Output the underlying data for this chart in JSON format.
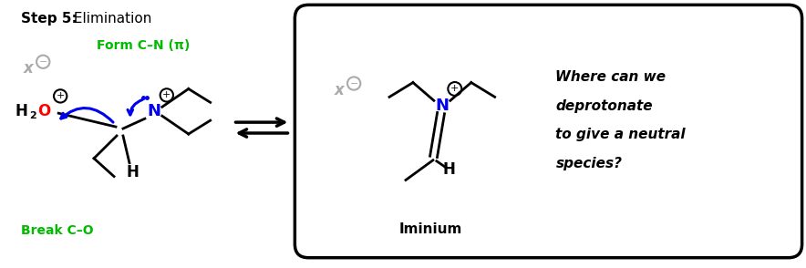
{
  "title_bold": "Step 5:",
  "title_regular": " Elimination",
  "green_label_top": "Form C–N (π)",
  "green_label_bottom": "Break C–O",
  "box_text_line1": "Where can we",
  "box_text_line2": "deprotonate",
  "box_text_line3": "to give a neutral",
  "box_text_line4": "species?",
  "iminium_label": "Iminium",
  "bg_color": "#ffffff",
  "green_color": "#00bb00",
  "gray_color": "#aaaaaa",
  "blue_color": "#0000ee",
  "red_color": "#ff0000"
}
